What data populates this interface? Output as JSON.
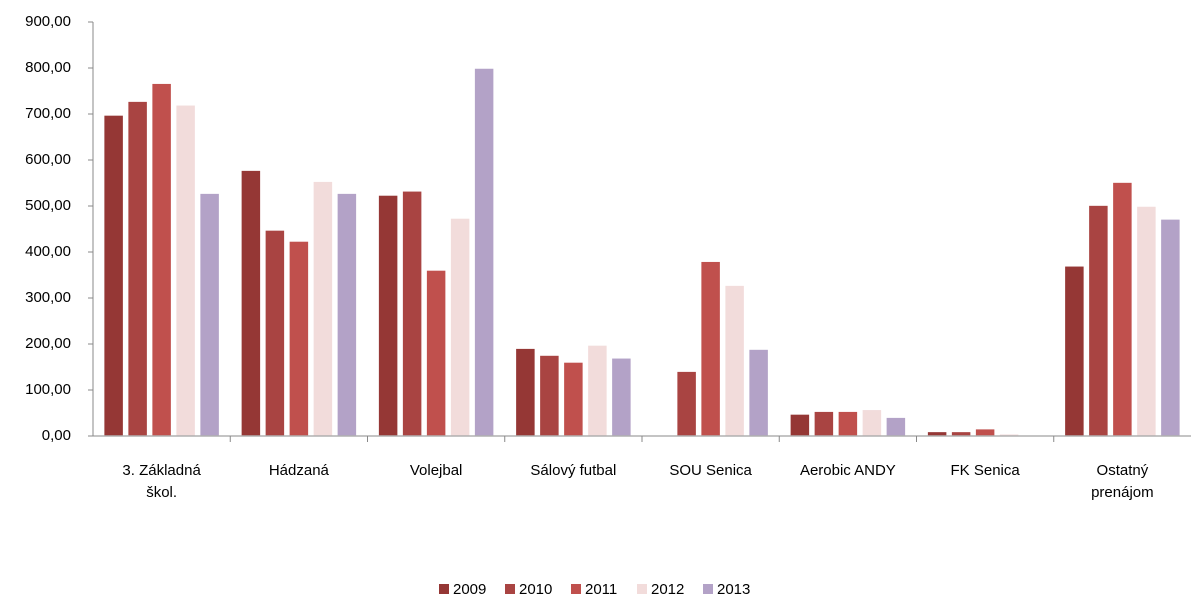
{
  "chart_data": {
    "type": "bar",
    "categories": [
      "3. Základná škol.",
      "Hádzaná",
      "Volejbal",
      "Sálový futbal",
      "SOU Senica",
      "Aerobic ANDY",
      "FK Senica",
      "Ostatný prenájom"
    ],
    "series": [
      {
        "name": "2009",
        "color": "#953735",
        "values": [
          698,
          578,
          524,
          191,
          null,
          48,
          10,
          370
        ]
      },
      {
        "name": "2010",
        "color": "#a94442",
        "values": [
          728,
          448,
          533,
          176,
          141,
          54,
          10,
          502
        ]
      },
      {
        "name": "2011",
        "color": "#c0504d",
        "values": [
          767,
          424,
          361,
          161,
          380,
          54,
          16,
          552
        ]
      },
      {
        "name": "2012",
        "color": "#f2dcdb",
        "values": [
          720,
          554,
          474,
          198,
          328,
          58,
          5,
          500
        ]
      },
      {
        "name": "2013",
        "color": "#b3a2c7",
        "values": [
          528,
          528,
          800,
          170,
          189,
          41,
          2,
          472
        ]
      }
    ],
    "ylim": [
      0,
      900
    ],
    "yticks": [
      {
        "value": 0,
        "label": "0,00"
      },
      {
        "value": 100,
        "label": "100,00"
      },
      {
        "value": 200,
        "label": "200,00"
      },
      {
        "value": 300,
        "label": "300,00"
      },
      {
        "value": 400,
        "label": "400,00"
      },
      {
        "value": 500,
        "label": "500,00"
      },
      {
        "value": 600,
        "label": "600,00"
      },
      {
        "value": 700,
        "label": "700,00"
      },
      {
        "value": 800,
        "label": "800,00"
      },
      {
        "value": 900,
        "label": "900,00"
      }
    ],
    "legend": "bottom"
  }
}
